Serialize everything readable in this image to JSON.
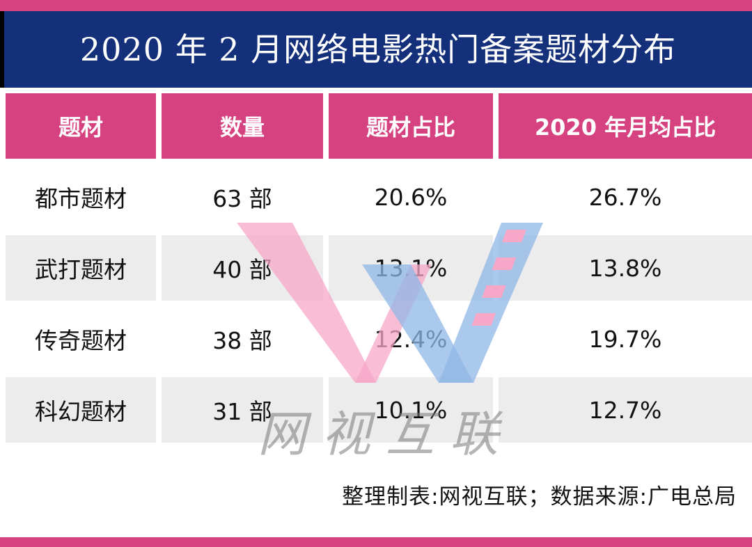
{
  "title": "2020 年 2 月网络电影热门备案题材分布",
  "chart_data": {
    "type": "table",
    "columns": [
      "题材",
      "数量",
      "题材占比",
      "2020 年月均占比"
    ],
    "rows": [
      [
        "都市题材",
        "63 部",
        "20.6%",
        "26.7%"
      ],
      [
        "武打题材",
        "40 部",
        "13.1%",
        "13.8%"
      ],
      [
        "传奇题材",
        "38 部",
        "12.4%",
        "19.7%"
      ],
      [
        "科幻题材",
        "31 部",
        "10.1%",
        "12.7%"
      ]
    ]
  },
  "footer": "整理制表:网视互联；数据来源:广电总局",
  "watermark": {
    "text": "网视互联",
    "colors": [
      "#f7a7c8",
      "#8fb7e6"
    ]
  },
  "colors": {
    "header": "#d6427f",
    "title_bg": "#14307a",
    "row_alt": "#ececec"
  }
}
